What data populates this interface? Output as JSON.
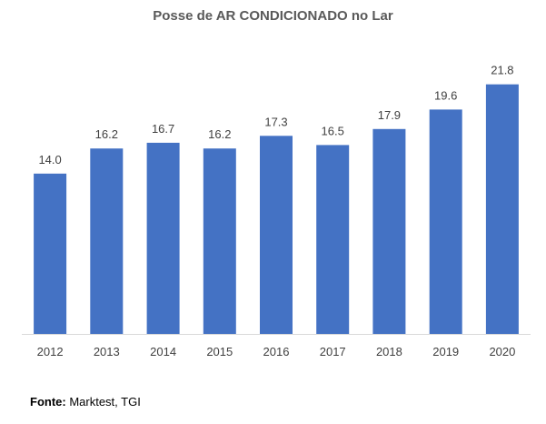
{
  "chart_data": {
    "type": "bar",
    "title": "Posse de AR CONDICIONADO no Lar",
    "categories": [
      "2012",
      "2013",
      "2014",
      "2015",
      "2016",
      "2017",
      "2018",
      "2019",
      "2020"
    ],
    "values": [
      14.0,
      16.2,
      16.7,
      16.2,
      17.3,
      16.5,
      17.9,
      19.6,
      21.8
    ],
    "value_labels": [
      "14.0",
      "16.2",
      "16.7",
      "16.2",
      "17.3",
      "16.5",
      "17.9",
      "19.6",
      "21.8"
    ],
    "xlabel": "",
    "ylabel": "",
    "ylim": [
      0,
      24
    ],
    "grid": false,
    "legend": "none",
    "bar_color": "#4472C4"
  },
  "footer": {
    "source_label": "Fonte:",
    "source_text": " Marktest, TGI"
  },
  "colors": {
    "title": "#595959",
    "labels": "#404040",
    "axis": "#d9d9d9"
  }
}
